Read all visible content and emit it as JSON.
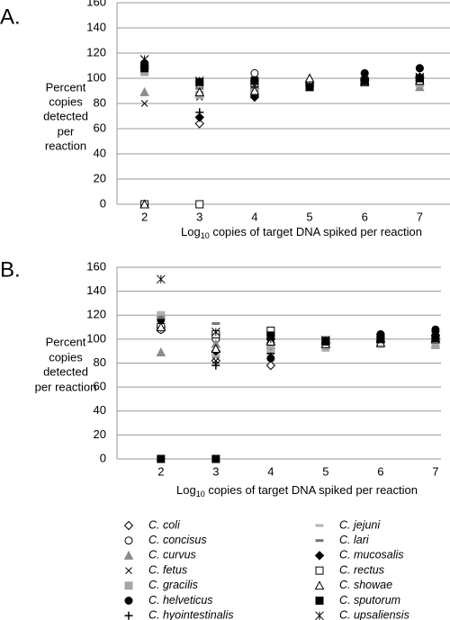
{
  "chart_data": [
    {
      "type": "scatter",
      "title": "A.",
      "y_label": [
        "Percent",
        "copies",
        "detected",
        "per",
        "reaction"
      ],
      "x_label": {
        "base": "Log",
        "sub": "10",
        "rest": " copies of target DNA spiked per reaction"
      },
      "x": [
        2,
        3,
        4,
        5,
        6,
        7
      ],
      "xlim": [
        1.5,
        7.55
      ],
      "xticks": [
        2,
        3,
        4,
        5,
        6,
        7
      ],
      "ylim": [
        0,
        160
      ],
      "yticks": [
        0,
        20,
        40,
        60,
        80,
        100,
        120,
        140,
        160
      ],
      "grid": true,
      "series": [
        {
          "name": "C. coli",
          "marker": "diamond-open",
          "color": "#000000",
          "values": [
            108,
            64,
            90,
            96,
            98,
            100
          ]
        },
        {
          "name": "C. concisus",
          "marker": "circle-open",
          "color": "#000000",
          "values": [
            110,
            95,
            104,
            96,
            104,
            108
          ]
        },
        {
          "name": "C. curvus",
          "marker": "triangle",
          "color": "#8c8c8c",
          "values": [
            89,
            88,
            93,
            100,
            97,
            93
          ]
        },
        {
          "name": "C. fetus",
          "marker": "x",
          "color": "#000000",
          "values": [
            80,
            85,
            95,
            94,
            99,
            97
          ]
        },
        {
          "name": "C. gracilis",
          "marker": "square",
          "color": "#a6a6a6",
          "values": [
            105,
            87,
            89,
            93,
            98,
            96
          ]
        },
        {
          "name": "C. helveticus",
          "marker": "circle",
          "color": "#000000",
          "values": [
            112,
            97,
            86,
            95,
            104,
            108
          ]
        },
        {
          "name": "C. hyointestinalis",
          "marker": "plus",
          "color": "#000000",
          "values": [
            112,
            73,
            98,
            97,
            98,
            100
          ]
        },
        {
          "name": "C. jejuni",
          "marker": "dash",
          "color": "#b3b3b3",
          "values": [
            108,
            95,
            98,
            93,
            96,
            95
          ]
        },
        {
          "name": "C. lari",
          "marker": "dash",
          "color": "#777777",
          "values": [
            110,
            92,
            97,
            95,
            97,
            98
          ]
        },
        {
          "name": "C. mucosalis",
          "marker": "diamond",
          "color": "#000000",
          "values": [
            110,
            69,
            85,
            94,
            99,
            101
          ]
        },
        {
          "name": "C. rectus",
          "marker": "square-open",
          "color": "#000000",
          "values": [
            0,
            0,
            96,
            95,
            97,
            98
          ]
        },
        {
          "name": "C. showae",
          "marker": "triangle-open",
          "color": "#000000",
          "values": [
            0,
            89,
            90,
            100,
            98,
            98
          ]
        },
        {
          "name": "C. sputorum",
          "marker": "square",
          "color": "#000000",
          "values": [
            108,
            97,
            98,
            93,
            98,
            100
          ]
        },
        {
          "name": "C. upsaliensis",
          "marker": "asterisk",
          "color": "#000000",
          "values": [
            115,
            98,
            95,
            94,
            97,
            101
          ]
        }
      ]
    },
    {
      "type": "scatter",
      "title": "B.",
      "y_label": [
        "Percent",
        "copies",
        "detected",
        "per reaction"
      ],
      "x_label": {
        "base": "Log",
        "sub": "10",
        "rest": " copies of target DNA spiked per reaction"
      },
      "x": [
        2,
        3,
        4,
        5,
        6,
        7
      ],
      "xlim": [
        1.2,
        7.1
      ],
      "xticks": [
        2,
        3,
        4,
        5,
        6,
        7
      ],
      "ylim": [
        0,
        160
      ],
      "yticks": [
        0,
        20,
        40,
        60,
        80,
        100,
        120,
        140,
        160
      ],
      "grid": true,
      "series": [
        {
          "values": [
            108,
            82,
            78,
            96,
            97,
            98
          ]
        },
        {
          "values": [
            108,
            100,
            100,
            98,
            104,
            103
          ]
        },
        {
          "values": [
            89,
            96,
            95,
            96,
            97,
            96
          ]
        },
        {
          "values": [
            110,
            82,
            90,
            96,
            99,
            99
          ]
        },
        {
          "values": [
            120,
            88,
            92,
            93,
            96,
            95
          ]
        },
        {
          "values": [
            116,
            104,
            84,
            97,
            104,
            108
          ]
        },
        {
          "values": [
            110,
            78,
            88,
            96,
            98,
            100
          ]
        },
        {
          "values": [
            122,
            87,
            90,
            100,
            96,
            97
          ]
        },
        {
          "values": [
            118,
            113,
            96,
            98,
            98,
            98
          ]
        },
        {
          "values": [
            110,
            90,
            100,
            97,
            98,
            103
          ]
        },
        {
          "values": [
            110,
            104,
            107,
            99,
            100,
            100
          ]
        },
        {
          "values": [
            110,
            92,
            98,
            96,
            97,
            100
          ]
        },
        {
          "values": [
            0,
            0,
            103,
            98,
            100,
            101
          ]
        },
        {
          "values": [
            150,
            106,
            100,
            99,
            101,
            103
          ]
        }
      ]
    }
  ]
}
